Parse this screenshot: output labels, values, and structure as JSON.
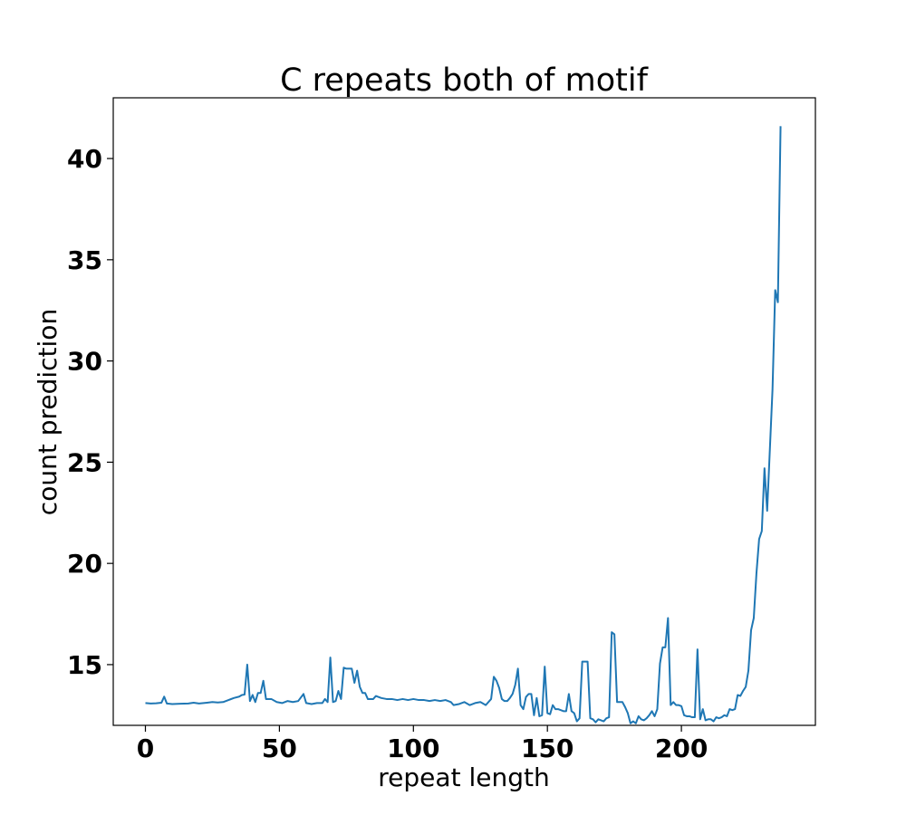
{
  "chart_data": {
    "type": "line",
    "title": "C repeats both of motif",
    "xlabel": "repeat length",
    "ylabel": "count prediction",
    "xlim": [
      -12,
      250
    ],
    "ylim": [
      12.0,
      43.0
    ],
    "x_ticks": [
      0,
      50,
      100,
      150,
      200
    ],
    "y_ticks": [
      15,
      20,
      25,
      30,
      35,
      40
    ],
    "x_tick_labels": [
      "0",
      "50",
      "100",
      "150",
      "200"
    ],
    "y_tick_labels": [
      "15",
      "20",
      "25",
      "30",
      "35",
      "40"
    ],
    "grid": false,
    "colors": {
      "line": "#1f77b4",
      "axes": "#000000",
      "background": "#ffffff"
    },
    "series": [
      {
        "points": [
          [
            0,
            13.1
          ],
          [
            2,
            13.08
          ],
          [
            4,
            13.09
          ],
          [
            6,
            13.12
          ],
          [
            7,
            13.42
          ],
          [
            8,
            13.08
          ],
          [
            10,
            13.05
          ],
          [
            13,
            13.07
          ],
          [
            16,
            13.08
          ],
          [
            18,
            13.12
          ],
          [
            20,
            13.08
          ],
          [
            23,
            13.12
          ],
          [
            25,
            13.15
          ],
          [
            27,
            13.13
          ],
          [
            29,
            13.15
          ],
          [
            31,
            13.25
          ],
          [
            33,
            13.35
          ],
          [
            35,
            13.42
          ],
          [
            36,
            13.5
          ],
          [
            37,
            13.52
          ],
          [
            38,
            15.0
          ],
          [
            39,
            13.2
          ],
          [
            40,
            13.5
          ],
          [
            41,
            13.15
          ],
          [
            42,
            13.6
          ],
          [
            43,
            13.6
          ],
          [
            44,
            14.2
          ],
          [
            45,
            13.3
          ],
          [
            47,
            13.3
          ],
          [
            49,
            13.15
          ],
          [
            51,
            13.1
          ],
          [
            53,
            13.2
          ],
          [
            55,
            13.15
          ],
          [
            57,
            13.2
          ],
          [
            59,
            13.55
          ],
          [
            60,
            13.1
          ],
          [
            62,
            13.05
          ],
          [
            64,
            13.1
          ],
          [
            66,
            13.1
          ],
          [
            67,
            13.3
          ],
          [
            68,
            13.15
          ],
          [
            69,
            15.35
          ],
          [
            70,
            13.15
          ],
          [
            71,
            13.2
          ],
          [
            72,
            13.7
          ],
          [
            73,
            13.3
          ],
          [
            74,
            14.85
          ],
          [
            75,
            14.8
          ],
          [
            76,
            14.8
          ],
          [
            77,
            14.8
          ],
          [
            78,
            14.1
          ],
          [
            79,
            14.7
          ],
          [
            80,
            13.9
          ],
          [
            81,
            13.6
          ],
          [
            82,
            13.6
          ],
          [
            83,
            13.3
          ],
          [
            85,
            13.3
          ],
          [
            86,
            13.45
          ],
          [
            88,
            13.35
          ],
          [
            90,
            13.3
          ],
          [
            92,
            13.3
          ],
          [
            94,
            13.25
          ],
          [
            96,
            13.3
          ],
          [
            98,
            13.25
          ],
          [
            100,
            13.3
          ],
          [
            102,
            13.25
          ],
          [
            104,
            13.25
          ],
          [
            106,
            13.2
          ],
          [
            108,
            13.25
          ],
          [
            110,
            13.2
          ],
          [
            112,
            13.25
          ],
          [
            114,
            13.15
          ],
          [
            115,
            13.0
          ],
          [
            117,
            13.05
          ],
          [
            119,
            13.15
          ],
          [
            121,
            13.0
          ],
          [
            123,
            13.1
          ],
          [
            125,
            13.15
          ],
          [
            127,
            13.0
          ],
          [
            129,
            13.3
          ],
          [
            130,
            14.4
          ],
          [
            131,
            14.2
          ],
          [
            132,
            13.85
          ],
          [
            133,
            13.3
          ],
          [
            134,
            13.2
          ],
          [
            135,
            13.2
          ],
          [
            136,
            13.35
          ],
          [
            137,
            13.55
          ],
          [
            138,
            14.0
          ],
          [
            139,
            14.8
          ],
          [
            140,
            13.0
          ],
          [
            141,
            12.8
          ],
          [
            142,
            13.4
          ],
          [
            143,
            13.55
          ],
          [
            144,
            13.55
          ],
          [
            145,
            12.5
          ],
          [
            146,
            13.35
          ],
          [
            147,
            12.45
          ],
          [
            148,
            12.5
          ],
          [
            149,
            14.9
          ],
          [
            150,
            12.6
          ],
          [
            151,
            12.55
          ],
          [
            152,
            13.0
          ],
          [
            153,
            12.8
          ],
          [
            154,
            12.8
          ],
          [
            155,
            12.75
          ],
          [
            156,
            12.7
          ],
          [
            157,
            12.7
          ],
          [
            158,
            13.55
          ],
          [
            159,
            12.7
          ],
          [
            160,
            12.6
          ],
          [
            161,
            12.2
          ],
          [
            162,
            12.35
          ],
          [
            163,
            15.15
          ],
          [
            164,
            15.15
          ],
          [
            165,
            15.15
          ],
          [
            166,
            12.35
          ],
          [
            167,
            12.3
          ],
          [
            168,
            12.15
          ],
          [
            169,
            12.3
          ],
          [
            170,
            12.25
          ],
          [
            171,
            12.2
          ],
          [
            172,
            12.35
          ],
          [
            173,
            12.4
          ],
          [
            174,
            16.6
          ],
          [
            175,
            16.5
          ],
          [
            176,
            13.15
          ],
          [
            177,
            13.15
          ],
          [
            178,
            13.15
          ],
          [
            179,
            12.9
          ],
          [
            180,
            12.6
          ],
          [
            181,
            12.1
          ],
          [
            182,
            12.2
          ],
          [
            183,
            12.1
          ],
          [
            184,
            12.45
          ],
          [
            185,
            12.3
          ],
          [
            186,
            12.25
          ],
          [
            187,
            12.35
          ],
          [
            188,
            12.5
          ],
          [
            189,
            12.7
          ],
          [
            190,
            12.45
          ],
          [
            191,
            12.8
          ],
          [
            192,
            15.05
          ],
          [
            193,
            15.85
          ],
          [
            194,
            15.85
          ],
          [
            195,
            17.3
          ],
          [
            196,
            13.0
          ],
          [
            197,
            13.15
          ],
          [
            198,
            13.0
          ],
          [
            199,
            13.0
          ],
          [
            200,
            12.95
          ],
          [
            201,
            12.5
          ],
          [
            202,
            12.45
          ],
          [
            203,
            12.45
          ],
          [
            204,
            12.4
          ],
          [
            205,
            12.4
          ],
          [
            206,
            15.75
          ],
          [
            207,
            12.3
          ],
          [
            208,
            12.8
          ],
          [
            209,
            12.25
          ],
          [
            210,
            12.3
          ],
          [
            211,
            12.3
          ],
          [
            212,
            12.2
          ],
          [
            213,
            12.4
          ],
          [
            214,
            12.35
          ],
          [
            215,
            12.4
          ],
          [
            216,
            12.5
          ],
          [
            217,
            12.45
          ],
          [
            218,
            12.8
          ],
          [
            219,
            12.75
          ],
          [
            220,
            12.8
          ],
          [
            221,
            13.5
          ],
          [
            222,
            13.45
          ],
          [
            223,
            13.7
          ],
          [
            224,
            13.9
          ],
          [
            225,
            14.7
          ],
          [
            226,
            16.7
          ],
          [
            227,
            17.3
          ],
          [
            228,
            19.5
          ],
          [
            229,
            21.2
          ],
          [
            230,
            21.6
          ],
          [
            231,
            24.7
          ],
          [
            232,
            22.6
          ],
          [
            233,
            25.6
          ],
          [
            234,
            28.6
          ],
          [
            235,
            33.5
          ],
          [
            236,
            32.9
          ],
          [
            237,
            41.6
          ]
        ]
      }
    ]
  }
}
